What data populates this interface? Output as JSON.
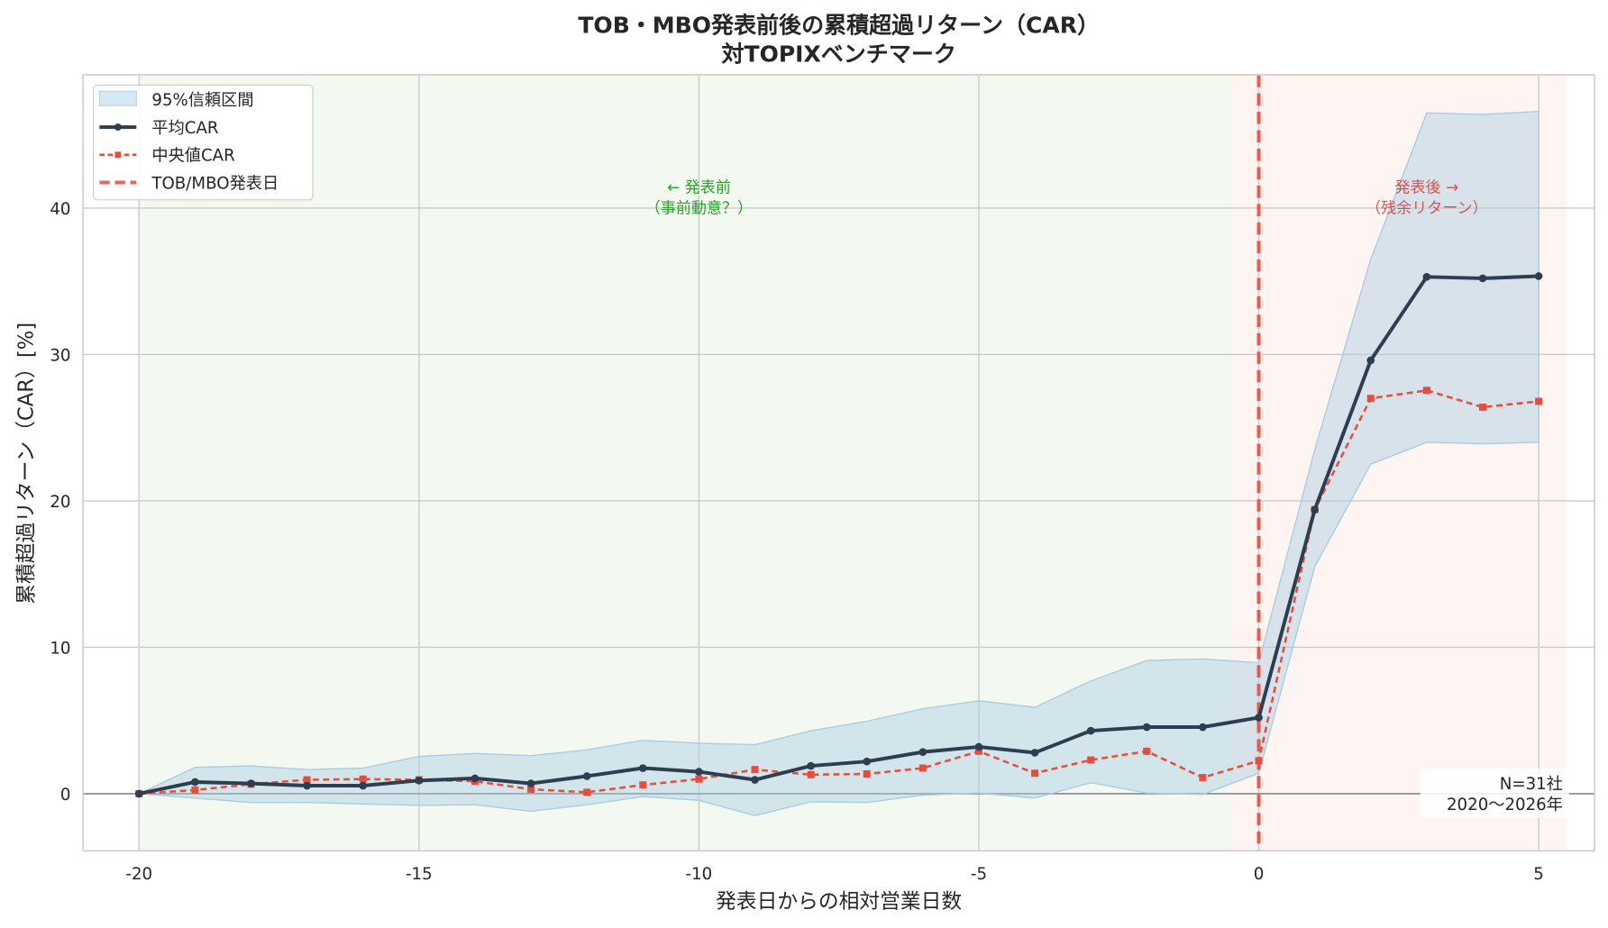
{
  "chart_data": {
    "type": "line",
    "title": "TOB・MBO発表前後の累積超過リターン（CAR）",
    "subtitle": "対TOPIXベンチマーク",
    "xlabel": "発表日からの相対営業日数",
    "ylabel": "累積超過リターン（CAR）[%]",
    "xlim": [
      -21,
      6
    ],
    "ylim": [
      -3.9,
      49.1
    ],
    "xticks": [
      -20,
      -15,
      -10,
      -5,
      0,
      5
    ],
    "yticks": [
      0,
      10,
      20,
      30,
      40
    ],
    "grid": true,
    "legend_position": "top-left",
    "x": [
      -20,
      -19,
      -18,
      -17,
      -16,
      -15,
      -14,
      -13,
      -12,
      -11,
      -10,
      -9,
      -8,
      -7,
      -6,
      -5,
      -4,
      -3,
      -2,
      -1,
      0,
      1,
      2,
      3,
      4,
      5
    ],
    "series": [
      {
        "name": "平均CAR",
        "color": "#2c3e50",
        "style": "solid-circle",
        "values": [
          0,
          0.8,
          0.7,
          0.55,
          0.55,
          0.9,
          1.05,
          0.7,
          1.2,
          1.75,
          1.5,
          0.95,
          1.9,
          2.2,
          2.85,
          3.2,
          2.8,
          4.3,
          4.55,
          4.55,
          5.2,
          19.4,
          29.6,
          35.3,
          35.2,
          35.35
        ]
      },
      {
        "name": "中央値CAR",
        "color": "#e74c3c",
        "style": "dashed-square",
        "values": [
          0,
          0.25,
          0.65,
          0.95,
          1.0,
          0.95,
          0.85,
          0.3,
          0.1,
          0.6,
          1.0,
          1.65,
          1.3,
          1.35,
          1.75,
          2.9,
          1.4,
          2.3,
          2.9,
          1.1,
          2.25,
          19.4,
          27.0,
          27.55,
          26.4,
          26.8
        ]
      }
    ],
    "confidence_band": {
      "name": "95%信頼区間",
      "color": "#a9cce3",
      "upper": [
        0,
        1.8,
        1.9,
        1.65,
        1.75,
        2.55,
        2.75,
        2.6,
        3.0,
        3.65,
        3.45,
        3.35,
        4.3,
        4.95,
        5.8,
        6.35,
        5.9,
        7.7,
        9.1,
        9.2,
        8.95,
        23.5,
        36.5,
        46.5,
        46.4,
        46.6
      ],
      "lower": [
        0,
        -0.3,
        -0.6,
        -0.6,
        -0.7,
        -0.8,
        -0.75,
        -1.2,
        -0.75,
        -0.2,
        -0.45,
        -1.5,
        -0.55,
        -0.6,
        -0.1,
        0.05,
        -0.3,
        0.75,
        0.05,
        -0.05,
        1.4,
        15.5,
        22.5,
        24.0,
        23.9,
        24.0
      ]
    },
    "event_line": {
      "name": "TOB/MBO発表日",
      "x": 0,
      "color": "#e74c3c"
    },
    "regions": [
      {
        "from": -20,
        "to": -0.5,
        "color": "#eaf4e4"
      },
      {
        "from": -0.5,
        "to": 5.5,
        "color": "#fdecea"
      }
    ],
    "annotations": [
      {
        "text_line1": "← 発表前",
        "text_line2": "（事前動意？）",
        "x": -10,
        "y": 41,
        "color": "#2ca02c"
      },
      {
        "text_line1": "発表後 →",
        "text_line2": "（残余リターン）",
        "x": 3,
        "y": 41,
        "color": "#d9534f"
      }
    ],
    "note_line1": "N=31社",
    "note_line2": "2020〜2026年"
  }
}
